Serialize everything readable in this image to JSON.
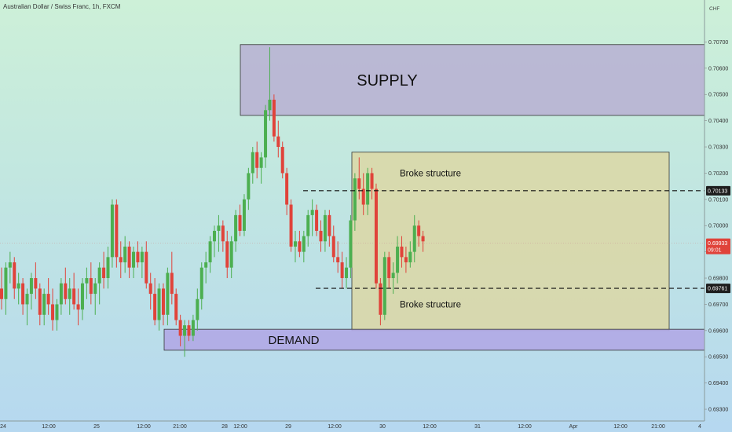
{
  "symbol": "Australian Dollar / Swiss Franc, 1h, FXCM",
  "currency": "CHF",
  "colors": {
    "up": "#4caf50",
    "down": "#e0433a",
    "supply": "#b8b3d3",
    "demand": "#b1a8e6",
    "range_box": "#dcd7a4",
    "current_price_bg": "#e0433a",
    "level_bg": "#1d1d1d"
  },
  "zones": [
    {
      "label": "SUPPLY",
      "top": 0.7069,
      "bottom": 0.7042
    },
    {
      "label": "DEMAND",
      "top": 0.69605,
      "bottom": 0.69525
    }
  ],
  "range_box": {
    "top": 0.7028,
    "bottom": 0.696
  },
  "annotations": [
    {
      "text": "Broke structure",
      "price": 0.702
    },
    {
      "text": "Broke structure",
      "price": 0.697
    }
  ],
  "levels": [
    {
      "price": 0.70133,
      "label": "0.70133"
    },
    {
      "price": 0.69761,
      "label": "0.69761"
    }
  ],
  "current_price": {
    "price": 0.69933,
    "label": "0.69933",
    "countdown": "09:01"
  },
  "chart_data": {
    "type": "candlestick",
    "title": "Australian Dollar / Swiss Franc, 1h, FXCM",
    "y_unit": "CHF",
    "ylim": [
      0.6926,
      0.7086
    ],
    "y_ticks": [
      "0.70700",
      "0.70600",
      "0.70500",
      "0.70400",
      "0.70300",
      "0.70200",
      "0.70100",
      "0.70000",
      "0.69900",
      "0.69800",
      "0.69700",
      "0.69600",
      "0.69500",
      "0.69400",
      "0.69300"
    ],
    "x_ticks": [
      "24",
      "12:00",
      "25",
      "12:00",
      "21:00",
      "28",
      "12:00",
      "29",
      "12:00",
      "30",
      "12:00",
      "31",
      "12:00",
      "Apr",
      "12:00",
      "21:00",
      "4"
    ],
    "series": [
      {
        "o": 0.6976,
        "h": 0.6984,
        "l": 0.6968,
        "c": 0.6972
      },
      {
        "o": 0.6972,
        "h": 0.6986,
        "l": 0.6966,
        "c": 0.6984
      },
      {
        "o": 0.6984,
        "h": 0.699,
        "l": 0.6978,
        "c": 0.6986
      },
      {
        "o": 0.6986,
        "h": 0.6988,
        "l": 0.6972,
        "c": 0.6976
      },
      {
        "o": 0.6976,
        "h": 0.6982,
        "l": 0.697,
        "c": 0.6978
      },
      {
        "o": 0.6978,
        "h": 0.698,
        "l": 0.6966,
        "c": 0.697
      },
      {
        "o": 0.697,
        "h": 0.6976,
        "l": 0.6962,
        "c": 0.6974
      },
      {
        "o": 0.6974,
        "h": 0.6982,
        "l": 0.6968,
        "c": 0.698
      },
      {
        "o": 0.698,
        "h": 0.6986,
        "l": 0.6972,
        "c": 0.6976
      },
      {
        "o": 0.6976,
        "h": 0.6978,
        "l": 0.6962,
        "c": 0.6966
      },
      {
        "o": 0.6966,
        "h": 0.6976,
        "l": 0.6962,
        "c": 0.6974
      },
      {
        "o": 0.6974,
        "h": 0.698,
        "l": 0.6966,
        "c": 0.697
      },
      {
        "o": 0.697,
        "h": 0.6976,
        "l": 0.696,
        "c": 0.6964
      },
      {
        "o": 0.6964,
        "h": 0.6972,
        "l": 0.696,
        "c": 0.697
      },
      {
        "o": 0.697,
        "h": 0.698,
        "l": 0.6966,
        "c": 0.6978
      },
      {
        "o": 0.6978,
        "h": 0.6984,
        "l": 0.697,
        "c": 0.6972
      },
      {
        "o": 0.6972,
        "h": 0.698,
        "l": 0.6966,
        "c": 0.6976
      },
      {
        "o": 0.6976,
        "h": 0.6982,
        "l": 0.6968,
        "c": 0.697
      },
      {
        "o": 0.697,
        "h": 0.6976,
        "l": 0.6962,
        "c": 0.6968
      },
      {
        "o": 0.6968,
        "h": 0.698,
        "l": 0.6964,
        "c": 0.6978
      },
      {
        "o": 0.6978,
        "h": 0.6984,
        "l": 0.6972,
        "c": 0.698
      },
      {
        "o": 0.698,
        "h": 0.6986,
        "l": 0.697,
        "c": 0.6974
      },
      {
        "o": 0.6974,
        "h": 0.698,
        "l": 0.6966,
        "c": 0.6978
      },
      {
        "o": 0.6978,
        "h": 0.6986,
        "l": 0.697,
        "c": 0.6984
      },
      {
        "o": 0.6984,
        "h": 0.699,
        "l": 0.6976,
        "c": 0.698
      },
      {
        "o": 0.698,
        "h": 0.6992,
        "l": 0.6976,
        "c": 0.6988
      },
      {
        "o": 0.6988,
        "h": 0.701,
        "l": 0.6984,
        "c": 0.7008
      },
      {
        "o": 0.7008,
        "h": 0.701,
        "l": 0.6984,
        "c": 0.6988
      },
      {
        "o": 0.6988,
        "h": 0.6994,
        "l": 0.698,
        "c": 0.6986
      },
      {
        "o": 0.6986,
        "h": 0.6996,
        "l": 0.6982,
        "c": 0.6992
      },
      {
        "o": 0.6992,
        "h": 0.6994,
        "l": 0.698,
        "c": 0.6984
      },
      {
        "o": 0.6984,
        "h": 0.6992,
        "l": 0.698,
        "c": 0.699
      },
      {
        "o": 0.699,
        "h": 0.6994,
        "l": 0.6984,
        "c": 0.6986
      },
      {
        "o": 0.6986,
        "h": 0.6992,
        "l": 0.698,
        "c": 0.699
      },
      {
        "o": 0.699,
        "h": 0.6994,
        "l": 0.6976,
        "c": 0.6978
      },
      {
        "o": 0.6978,
        "h": 0.6982,
        "l": 0.6968,
        "c": 0.6974
      },
      {
        "o": 0.6974,
        "h": 0.698,
        "l": 0.6962,
        "c": 0.6964
      },
      {
        "o": 0.6964,
        "h": 0.6978,
        "l": 0.696,
        "c": 0.6976
      },
      {
        "o": 0.6976,
        "h": 0.6978,
        "l": 0.6962,
        "c": 0.6966
      },
      {
        "o": 0.6966,
        "h": 0.6984,
        "l": 0.6962,
        "c": 0.6982
      },
      {
        "o": 0.6982,
        "h": 0.699,
        "l": 0.697,
        "c": 0.6974
      },
      {
        "o": 0.6974,
        "h": 0.6976,
        "l": 0.6962,
        "c": 0.6964
      },
      {
        "o": 0.6964,
        "h": 0.6966,
        "l": 0.6954,
        "c": 0.6958
      },
      {
        "o": 0.6958,
        "h": 0.6964,
        "l": 0.695,
        "c": 0.6962
      },
      {
        "o": 0.6962,
        "h": 0.6964,
        "l": 0.6956,
        "c": 0.6958
      },
      {
        "o": 0.6958,
        "h": 0.6966,
        "l": 0.6956,
        "c": 0.6964
      },
      {
        "o": 0.6964,
        "h": 0.6976,
        "l": 0.696,
        "c": 0.6972
      },
      {
        "o": 0.6972,
        "h": 0.6986,
        "l": 0.6968,
        "c": 0.6984
      },
      {
        "o": 0.6984,
        "h": 0.699,
        "l": 0.6978,
        "c": 0.6986
      },
      {
        "o": 0.6986,
        "h": 0.6996,
        "l": 0.6982,
        "c": 0.6994
      },
      {
        "o": 0.6994,
        "h": 0.7,
        "l": 0.6988,
        "c": 0.6998
      },
      {
        "o": 0.6998,
        "h": 0.7004,
        "l": 0.699,
        "c": 0.7
      },
      {
        "o": 0.7,
        "h": 0.7002,
        "l": 0.699,
        "c": 0.6994
      },
      {
        "o": 0.6994,
        "h": 0.6998,
        "l": 0.698,
        "c": 0.6984
      },
      {
        "o": 0.6984,
        "h": 0.6996,
        "l": 0.698,
        "c": 0.6994
      },
      {
        "o": 0.6994,
        "h": 0.7006,
        "l": 0.699,
        "c": 0.7004
      },
      {
        "o": 0.7004,
        "h": 0.7008,
        "l": 0.6996,
        "c": 0.6998
      },
      {
        "o": 0.6998,
        "h": 0.7012,
        "l": 0.6996,
        "c": 0.701
      },
      {
        "o": 0.701,
        "h": 0.7022,
        "l": 0.7006,
        "c": 0.702
      },
      {
        "o": 0.702,
        "h": 0.703,
        "l": 0.7016,
        "c": 0.7028
      },
      {
        "o": 0.7028,
        "h": 0.7032,
        "l": 0.7018,
        "c": 0.7022
      },
      {
        "o": 0.7022,
        "h": 0.7028,
        "l": 0.7016,
        "c": 0.7026
      },
      {
        "o": 0.7026,
        "h": 0.7046,
        "l": 0.7022,
        "c": 0.7044
      },
      {
        "o": 0.7044,
        "h": 0.7068,
        "l": 0.704,
        "c": 0.7048
      },
      {
        "o": 0.7048,
        "h": 0.705,
        "l": 0.7032,
        "c": 0.7034
      },
      {
        "o": 0.7034,
        "h": 0.704,
        "l": 0.7026,
        "c": 0.703
      },
      {
        "o": 0.703,
        "h": 0.7032,
        "l": 0.7018,
        "c": 0.702
      },
      {
        "o": 0.702,
        "h": 0.7022,
        "l": 0.7004,
        "c": 0.7008
      },
      {
        "o": 0.7008,
        "h": 0.701,
        "l": 0.699,
        "c": 0.6992
      },
      {
        "o": 0.6992,
        "h": 0.6998,
        "l": 0.6986,
        "c": 0.6994
      },
      {
        "o": 0.6994,
        "h": 0.6998,
        "l": 0.6988,
        "c": 0.699
      },
      {
        "o": 0.699,
        "h": 0.6998,
        "l": 0.6986,
        "c": 0.6996
      },
      {
        "o": 0.6996,
        "h": 0.7006,
        "l": 0.6992,
        "c": 0.7004
      },
      {
        "o": 0.7004,
        "h": 0.701,
        "l": 0.6996,
        "c": 0.7006
      },
      {
        "o": 0.7006,
        "h": 0.7008,
        "l": 0.6996,
        "c": 0.6998
      },
      {
        "o": 0.6998,
        "h": 0.7002,
        "l": 0.699,
        "c": 0.6994
      },
      {
        "o": 0.6994,
        "h": 0.7006,
        "l": 0.699,
        "c": 0.7004
      },
      {
        "o": 0.7004,
        "h": 0.7006,
        "l": 0.6992,
        "c": 0.6996
      },
      {
        "o": 0.6996,
        "h": 0.7,
        "l": 0.6986,
        "c": 0.6988
      },
      {
        "o": 0.6988,
        "h": 0.6994,
        "l": 0.6982,
        "c": 0.6986
      },
      {
        "o": 0.6986,
        "h": 0.699,
        "l": 0.6976,
        "c": 0.698
      },
      {
        "o": 0.698,
        "h": 0.6988,
        "l": 0.6976,
        "c": 0.6984
      },
      {
        "o": 0.6984,
        "h": 0.7004,
        "l": 0.698,
        "c": 0.7002
      },
      {
        "o": 0.7002,
        "h": 0.702,
        "l": 0.6998,
        "c": 0.7018
      },
      {
        "o": 0.7018,
        "h": 0.7026,
        "l": 0.701,
        "c": 0.7014
      },
      {
        "o": 0.7014,
        "h": 0.702,
        "l": 0.7004,
        "c": 0.7008
      },
      {
        "o": 0.7008,
        "h": 0.7022,
        "l": 0.7004,
        "c": 0.702
      },
      {
        "o": 0.702,
        "h": 0.7022,
        "l": 0.701,
        "c": 0.7014
      },
      {
        "o": 0.7014,
        "h": 0.7016,
        "l": 0.6976,
        "c": 0.6978
      },
      {
        "o": 0.6978,
        "h": 0.698,
        "l": 0.6962,
        "c": 0.6966
      },
      {
        "o": 0.6966,
        "h": 0.699,
        "l": 0.6964,
        "c": 0.6988
      },
      {
        "o": 0.6988,
        "h": 0.699,
        "l": 0.6976,
        "c": 0.698
      },
      {
        "o": 0.698,
        "h": 0.6986,
        "l": 0.6974,
        "c": 0.6982
      },
      {
        "o": 0.6982,
        "h": 0.6996,
        "l": 0.6978,
        "c": 0.6992
      },
      {
        "o": 0.6992,
        "h": 0.6996,
        "l": 0.6984,
        "c": 0.6988
      },
      {
        "o": 0.6988,
        "h": 0.6992,
        "l": 0.6982,
        "c": 0.6986
      },
      {
        "o": 0.6986,
        "h": 0.6994,
        "l": 0.6984,
        "c": 0.699
      },
      {
        "o": 0.699,
        "h": 0.7004,
        "l": 0.6986,
        "c": 0.7
      },
      {
        "o": 0.7,
        "h": 0.7002,
        "l": 0.6992,
        "c": 0.6996
      },
      {
        "o": 0.6996,
        "h": 0.6998,
        "l": 0.699,
        "c": 0.6994
      }
    ]
  }
}
